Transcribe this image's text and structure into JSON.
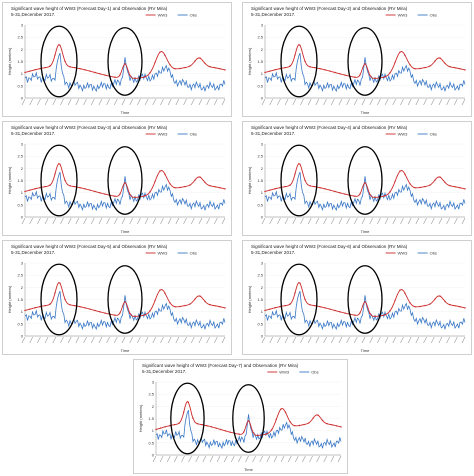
{
  "chart_data": [
    {
      "type": "line",
      "title": "Significant wave height of WW3 (Forecast Day-1) and Observation (RV Mira)",
      "subtitle": "5-31,December 2017.",
      "xlabel": "Time",
      "ylabel": "Height (meters)",
      "ylim": [
        0,
        3
      ],
      "yticks": [
        "0",
        "0.5",
        "1",
        "1.5",
        "2",
        "2.5",
        "3"
      ],
      "series": [
        {
          "name": "WW3",
          "color": "#cc2a2a"
        },
        {
          "name": "Obs",
          "color": "#3a78c6"
        }
      ]
    },
    {
      "type": "line",
      "title": "Significant wave height of WW3 (Forecast Day-2) and Observation (RV Mira)",
      "subtitle": "5-31,December 2017.",
      "xlabel": "Time",
      "ylabel": "Height (meters)",
      "ylim": [
        0,
        3
      ],
      "yticks": [
        "0",
        "0.5",
        "1",
        "1.5",
        "2",
        "2.5",
        "3"
      ],
      "series": [
        {
          "name": "WW3",
          "color": "#cc2a2a"
        },
        {
          "name": "Obs",
          "color": "#3a78c6"
        }
      ]
    },
    {
      "type": "line",
      "title": "Significant wave height of WW3 (Forecast Day-3) and Observation (RV Mira)",
      "subtitle": "5-31,December 2017.",
      "xlabel": "Time",
      "ylabel": "Height (meters)",
      "ylim": [
        0,
        3
      ],
      "yticks": [
        "0",
        "0.5",
        "1",
        "1.5",
        "2",
        "2.5",
        "3"
      ],
      "series": [
        {
          "name": "WW3",
          "color": "#cc2a2a"
        },
        {
          "name": "Obs",
          "color": "#3a78c6"
        }
      ]
    },
    {
      "type": "line",
      "title": "Significant wave height of WW3 (Forecast Day-4) and Observation (RV Mira)",
      "subtitle": "5-31,December 2017.",
      "xlabel": "Time",
      "ylabel": "Height (meters)",
      "ylim": [
        0,
        3
      ],
      "yticks": [
        "0",
        "0.5",
        "1",
        "1.5",
        "2",
        "2.5",
        "3"
      ],
      "series": [
        {
          "name": "WW3",
          "color": "#cc2a2a"
        },
        {
          "name": "Obs",
          "color": "#3a78c6"
        }
      ]
    },
    {
      "type": "line",
      "title": "Significant wave height of WW3 (Forecast Day-5) and Observation (RV Mira)",
      "subtitle": "5-31,December 2017.",
      "xlabel": "Time",
      "ylabel": "Height (meters)",
      "ylim": [
        0,
        3
      ],
      "yticks": [
        "0",
        "0.5",
        "1",
        "1.5",
        "2",
        "2.5",
        "3"
      ],
      "series": [
        {
          "name": "WW3",
          "color": "#cc2a2a"
        },
        {
          "name": "Obs",
          "color": "#3a78c6"
        }
      ]
    },
    {
      "type": "line",
      "title": "Significant wave height of WW3 (Forecast Day-6) and Observation (RV Mira)",
      "subtitle": "5-31,December 2017.",
      "xlabel": "Time",
      "ylabel": "Height (meters)",
      "ylim": [
        0,
        3
      ],
      "yticks": [
        "0",
        "0.5",
        "1",
        "1.5",
        "2",
        "2.5",
        "3"
      ],
      "series": [
        {
          "name": "WW3",
          "color": "#cc2a2a"
        },
        {
          "name": "Obs",
          "color": "#3a78c6"
        }
      ]
    },
    {
      "type": "line",
      "title": "Significant wave height of WW3 (Forecast Day-7) and Observation (RV Mira)",
      "subtitle": "5-31,December 2017.",
      "xlabel": "Time",
      "ylabel": "Height (meters)",
      "ylim": [
        0,
        3
      ],
      "yticks": [
        "0",
        "0.5",
        "1",
        "1.5",
        "2",
        "2.5",
        "3"
      ],
      "series": [
        {
          "name": "WW3",
          "color": "#cc2a2a"
        },
        {
          "name": "Obs",
          "color": "#3a78c6"
        }
      ]
    }
  ]
}
